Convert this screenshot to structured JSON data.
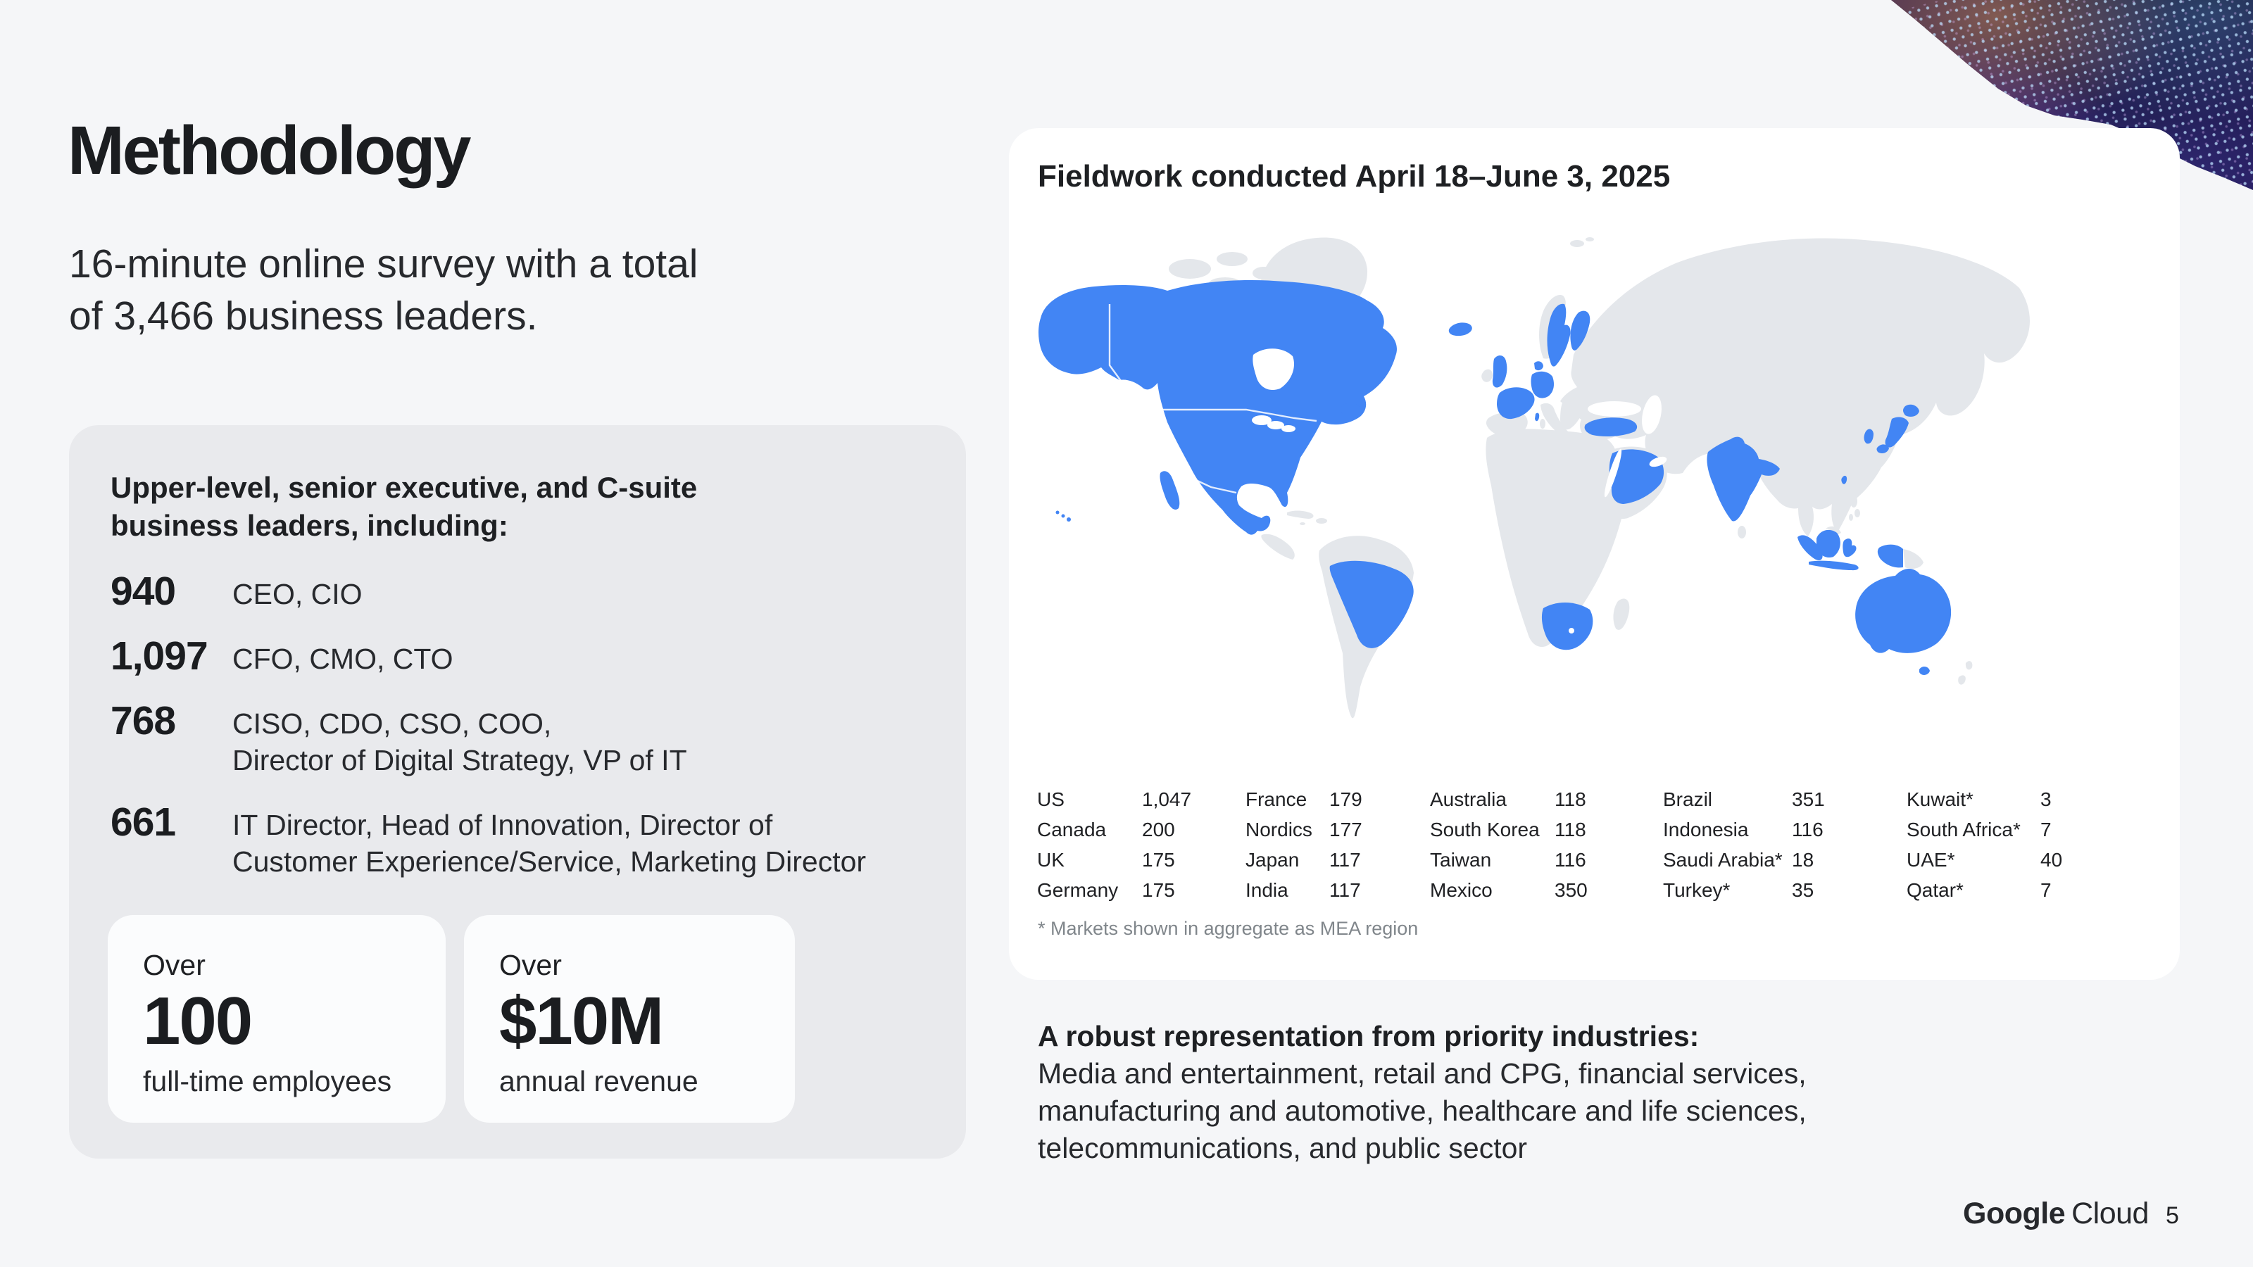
{
  "slide": {
    "title": "Methodology",
    "subtitle": "16-minute online survey with a total\nof 3,466 business leaders."
  },
  "panel": {
    "heading": "Upper-level, senior executive, and C-suite\nbusiness leaders, including:",
    "stats": [
      {
        "value": "940",
        "label": "CEO, CIO"
      },
      {
        "value": "1,097",
        "label": "CFO, CMO, CTO"
      },
      {
        "value": "768",
        "label": "CISO, CDO, CSO, COO,\nDirector of Digital Strategy, VP of IT"
      },
      {
        "value": "661",
        "label": "IT Director, Head of Innovation, Director of\nCustomer Experience/Service, Marketing Director"
      }
    ],
    "cards": [
      {
        "over": "Over",
        "value": "100",
        "caption": "full-time employees"
      },
      {
        "over": "Over",
        "value": "$10M",
        "caption": "annual revenue"
      }
    ]
  },
  "map_card": {
    "header": "Fieldwork conducted April 18–June 3, 2025",
    "footnote": "* Markets shown in aggregate as MEA region",
    "columns": [
      [
        {
          "name": "US",
          "value": "1,047"
        },
        {
          "name": "Canada",
          "value": "200"
        },
        {
          "name": "UK",
          "value": "175"
        },
        {
          "name": "Germany",
          "value": "175"
        }
      ],
      [
        {
          "name": "France",
          "value": "179"
        },
        {
          "name": "Nordics",
          "value": "177"
        },
        {
          "name": "Japan",
          "value": "117"
        },
        {
          "name": "India",
          "value": "117"
        }
      ],
      [
        {
          "name": "Australia",
          "value": "118"
        },
        {
          "name": "South Korea",
          "value": "118"
        },
        {
          "name": "Taiwan",
          "value": "116"
        },
        {
          "name": "Mexico",
          "value": "350"
        }
      ],
      [
        {
          "name": "Brazil",
          "value": "351"
        },
        {
          "name": "Indonesia",
          "value": "116"
        },
        {
          "name": "Saudi Arabia*",
          "value": "18"
        },
        {
          "name": "Turkey*",
          "value": "35"
        }
      ],
      [
        {
          "name": "Kuwait*",
          "value": "3"
        },
        {
          "name": "South Africa*",
          "value": "7"
        },
        {
          "name": "UAE*",
          "value": "40"
        },
        {
          "name": "Qatar*",
          "value": "7"
        }
      ]
    ],
    "highlighted_markets": [
      "US",
      "Canada",
      "Mexico",
      "Brazil",
      "UK",
      "France",
      "Germany",
      "Nordics",
      "Iceland",
      "Turkey",
      "Saudi Arabia",
      "South Africa",
      "India",
      "Japan",
      "South Korea",
      "Taiwan",
      "Indonesia",
      "Australia"
    ]
  },
  "industries": {
    "heading": "A robust representation from priority industries:",
    "body": "Media and entertainment, retail and CPG, financial services,\nmanufacturing and automotive, healthcare and life sciences,\ntelecommunications, and public sector"
  },
  "footer": {
    "brand_bold": "Google",
    "brand_regular": "Cloud",
    "page_number": "5"
  },
  "colors": {
    "background": "#F5F6F8",
    "panel_bg": "#E9EAED",
    "card_bg": "#FFFFFF",
    "mini_card_bg": "#FBFCFD",
    "map_land": "#E4E7EB",
    "map_highlight": "#4285F4",
    "text_primary": "#202124",
    "text_secondary": "#80868B"
  }
}
